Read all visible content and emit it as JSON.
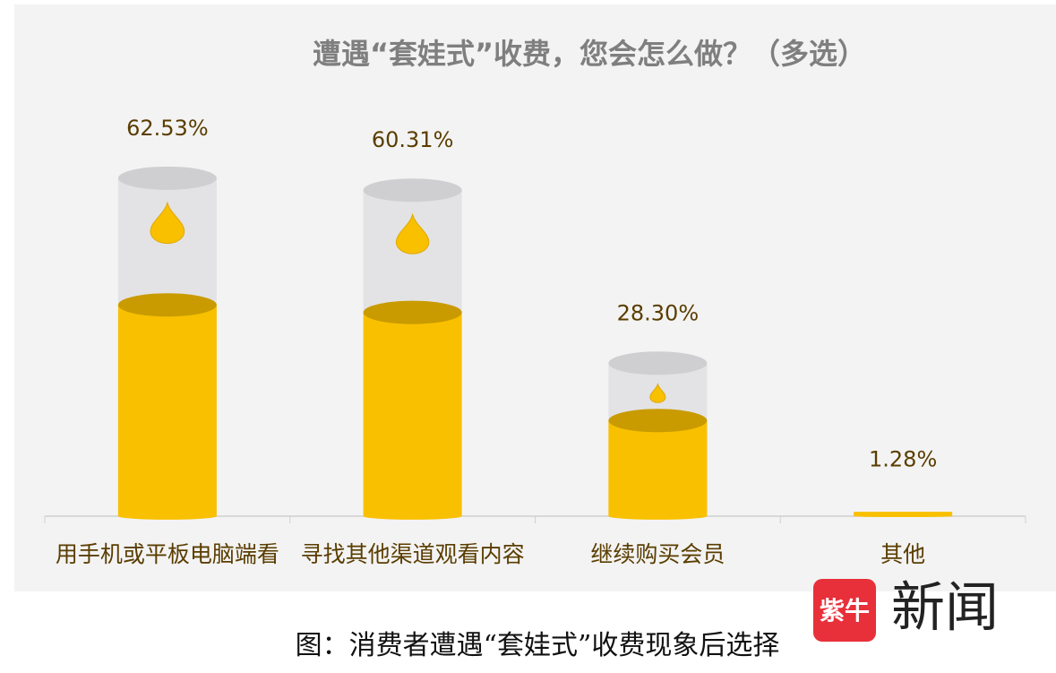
{
  "chart_data": {
    "type": "bar",
    "title": "遭遇“套娃式”收费，您会怎么做？（多选）",
    "categories": [
      "用手机或平板电脑端看",
      "寻找其他渠道观看内容",
      "继续购买会员",
      "其他"
    ],
    "values": [
      62.53,
      60.31,
      28.3,
      1.28
    ],
    "value_labels": [
      "62.53%",
      "60.31%",
      "28.30%",
      "1.28%"
    ],
    "color": "#f9c000"
  },
  "caption": "图：消费者遭遇“套娃式”收费现象后选择",
  "watermark": {
    "badge": "紫牛",
    "text": "新闻"
  }
}
